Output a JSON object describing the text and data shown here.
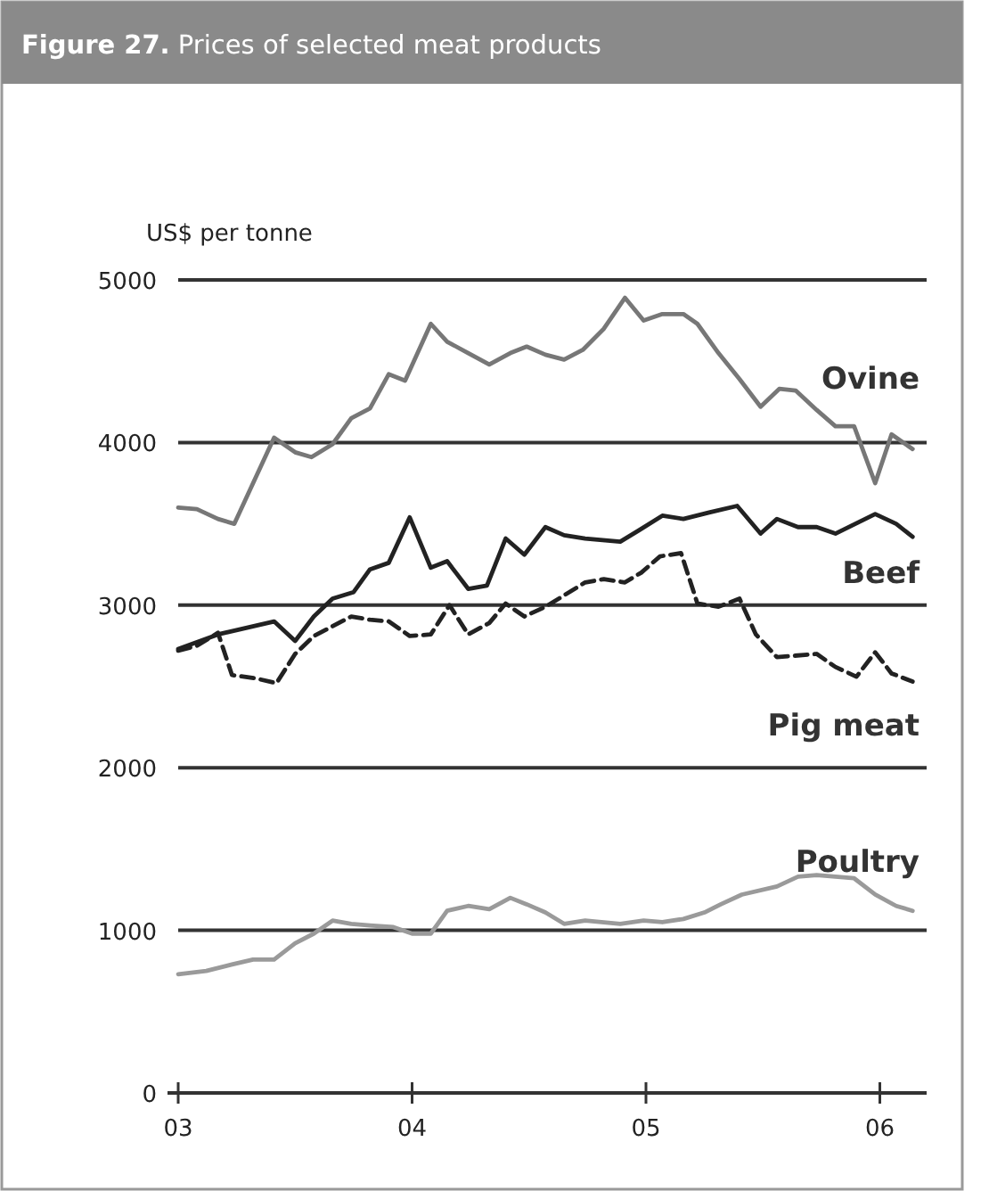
{
  "chart_data": {
    "type": "line",
    "title": "Figure 27. Prices of selected meat products",
    "ylabel": "US$ per tonne",
    "xlim": [
      2003,
      2006.2
    ],
    "xticks": [
      {
        "value": 2003,
        "label": "03"
      },
      {
        "value": 2004,
        "label": "04"
      },
      {
        "value": 2005,
        "label": "05"
      },
      {
        "value": 2006,
        "label": "06"
      }
    ],
    "ylim": [
      0,
      5000
    ],
    "yticks": [
      0,
      1000,
      2000,
      3000,
      4000,
      5000
    ],
    "grid": "y",
    "series": [
      {
        "name": "Ovine",
        "color": "#777777",
        "line_style": "solid",
        "x": [
          2003.0,
          2003.08,
          2003.17,
          2003.24,
          2003.41,
          2003.5,
          2003.57,
          2003.66,
          2003.74,
          2003.82,
          2003.9,
          2003.97,
          2004.08,
          2004.15,
          2004.24,
          2004.33,
          2004.42,
          2004.49,
          2004.57,
          2004.65,
          2004.73,
          2004.82,
          2004.91,
          2004.99,
          2005.07,
          2005.16,
          2005.22,
          2005.31,
          2005.4,
          2005.49,
          2005.57,
          2005.64,
          2005.73,
          2005.81,
          2005.89,
          2005.98,
          2006.05,
          2006.14
        ],
        "values": [
          3600,
          3590,
          3530,
          3500,
          4030,
          3940,
          3910,
          3990,
          4150,
          4210,
          4420,
          4380,
          4730,
          4620,
          4550,
          4480,
          4550,
          4590,
          4540,
          4510,
          4570,
          4700,
          4890,
          4750,
          4790,
          4790,
          4730,
          4550,
          4390,
          4220,
          4330,
          4320,
          4200,
          4100,
          4100,
          3750,
          4050,
          3960
        ]
      },
      {
        "name": "Beef",
        "color": "#222222",
        "line_style": "solid",
        "x": [
          2003.0,
          2003.17,
          2003.41,
          2003.5,
          2003.58,
          2003.66,
          2003.75,
          2003.82,
          2003.9,
          2003.99,
          2004.08,
          2004.15,
          2004.24,
          2004.32,
          2004.4,
          2004.48,
          2004.57,
          2004.65,
          2004.74,
          2004.89,
          2004.97,
          2005.07,
          2005.16,
          2005.27,
          2005.39,
          2005.49,
          2005.56,
          2005.65,
          2005.73,
          2005.81,
          2005.98,
          2006.07,
          2006.14
        ],
        "values": [
          2730,
          2820,
          2900,
          2780,
          2930,
          3040,
          3080,
          3220,
          3260,
          3540,
          3230,
          3270,
          3100,
          3120,
          3410,
          3310,
          3480,
          3430,
          3410,
          3390,
          3460,
          3550,
          3530,
          3570,
          3610,
          3440,
          3530,
          3480,
          3480,
          3440,
          3560,
          3500,
          3420
        ]
      },
      {
        "name": "Pig meat",
        "color": "#222222",
        "line_style": "dashed",
        "x": [
          2003.0,
          2003.08,
          2003.17,
          2003.23,
          2003.33,
          2003.42,
          2003.5,
          2003.58,
          2003.74,
          2003.82,
          2003.9,
          2003.99,
          2004.08,
          2004.16,
          2004.24,
          2004.33,
          2004.4,
          2004.48,
          2004.57,
          2004.65,
          2004.74,
          2004.82,
          2004.91,
          2004.98,
          2005.06,
          2005.15,
          2005.22,
          2005.31,
          2005.4,
          2005.47,
          2005.56,
          2005.73,
          2005.81,
          2005.9,
          2005.98,
          2006.05,
          2006.14
        ],
        "values": [
          2720,
          2750,
          2830,
          2570,
          2550,
          2520,
          2700,
          2810,
          2930,
          2910,
          2900,
          2810,
          2820,
          3000,
          2820,
          2890,
          3010,
          2930,
          2990,
          3060,
          3140,
          3160,
          3140,
          3200,
          3300,
          3320,
          3010,
          2990,
          3040,
          2820,
          2680,
          2700,
          2620,
          2560,
          2710,
          2580,
          2530
        ]
      },
      {
        "name": "Poultry",
        "color": "#9a9a9a",
        "line_style": "solid",
        "x": [
          2003.0,
          2003.12,
          2003.23,
          2003.32,
          2003.41,
          2003.5,
          2003.58,
          2003.66,
          2003.74,
          2003.82,
          2003.92,
          2004.0,
          2004.08,
          2004.15,
          2004.24,
          2004.33,
          2004.42,
          2004.49,
          2004.57,
          2004.65,
          2004.74,
          2004.89,
          2004.99,
          2005.07,
          2005.16,
          2005.25,
          2005.32,
          2005.41,
          2005.56,
          2005.65,
          2005.73,
          2005.89,
          2005.98,
          2006.07,
          2006.14
        ],
        "values": [
          730,
          750,
          790,
          820,
          820,
          920,
          980,
          1060,
          1040,
          1030,
          1020,
          980,
          980,
          1120,
          1150,
          1130,
          1200,
          1160,
          1110,
          1040,
          1060,
          1040,
          1060,
          1050,
          1070,
          1110,
          1160,
          1220,
          1270,
          1330,
          1340,
          1320,
          1220,
          1150,
          1120
        ]
      }
    ]
  }
}
